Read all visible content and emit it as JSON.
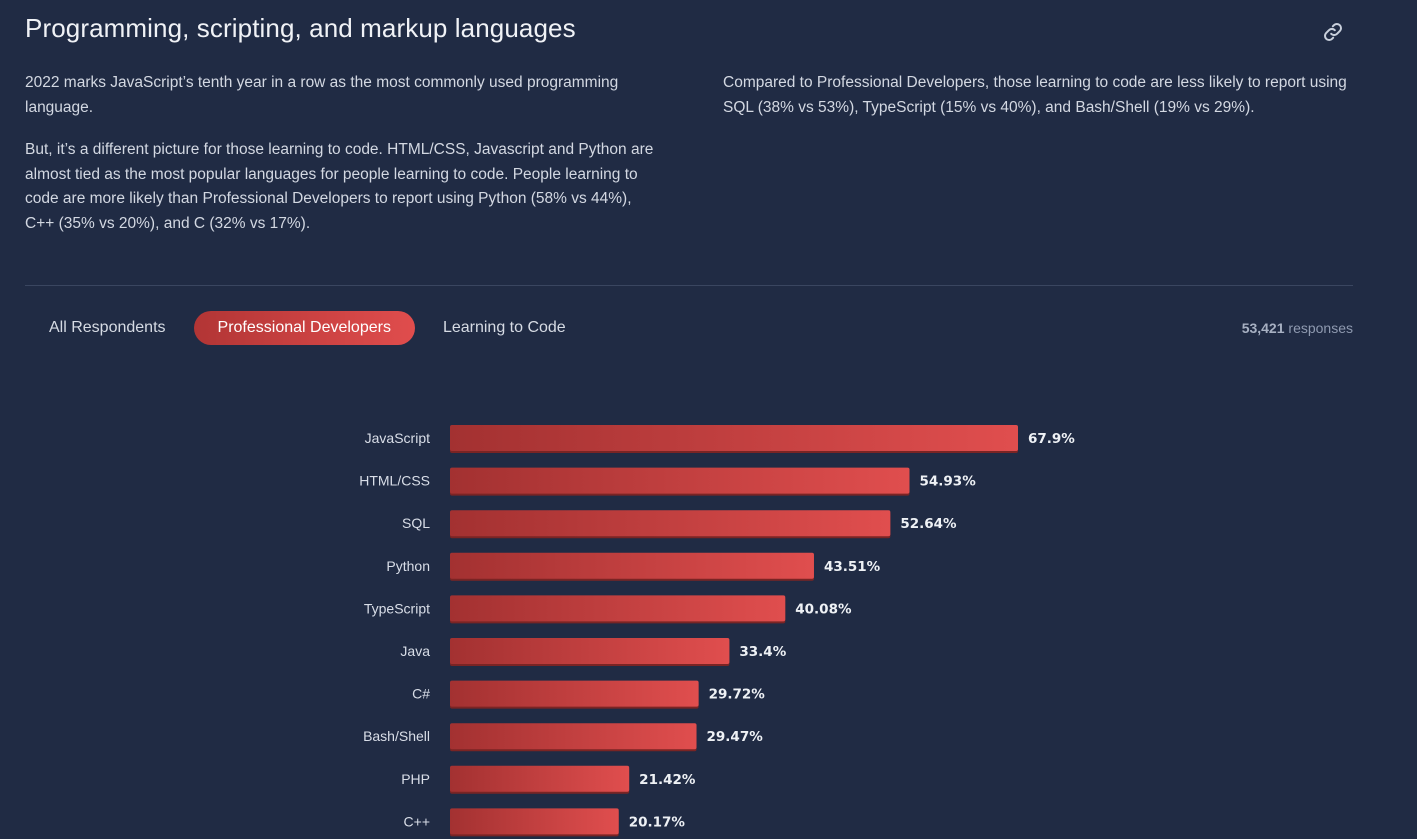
{
  "section": {
    "title": "Programming, scripting, and markup languages",
    "link_icon": "link-icon"
  },
  "intro": {
    "left_p1": "2022 marks JavaScript’s tenth year in a row as the most commonly used programming language.",
    "left_p2": "But, it’s a different picture for those learning to code. HTML/CSS, Javascript and Python are almost tied as the most popular languages for people learning to code. People learning to code are more likely than Professional Developers to report using Python (58% vs 44%), C++ (35% vs 20%), and C (32% vs 17%).",
    "right_p1": "Compared to Professional Developers, those learning to code are less likely to report using SQL (38% vs 53%), TypeScript (15% vs 40%), and Bash/Shell (19% vs 29%)."
  },
  "tabs": [
    {
      "label": "All Respondents",
      "active": false
    },
    {
      "label": "Professional Developers",
      "active": true
    },
    {
      "label": "Learning to Code",
      "active": false
    }
  ],
  "responses": {
    "count": "53,421",
    "label": "responses"
  },
  "colors": {
    "background": "#202b44",
    "bar_start": "#a33131",
    "bar_end": "#e04e4e",
    "active_tab": "#d84646"
  },
  "chart_data": {
    "type": "bar",
    "orientation": "horizontal",
    "categories": [
      "JavaScript",
      "HTML/CSS",
      "SQL",
      "Python",
      "TypeScript",
      "Java",
      "C#",
      "Bash/Shell",
      "PHP",
      "C++"
    ],
    "values": [
      67.9,
      54.93,
      52.64,
      43.51,
      40.08,
      33.4,
      29.72,
      29.47,
      21.42,
      20.17
    ],
    "value_labels": [
      "67.9%",
      "54.93%",
      "52.64%",
      "43.51%",
      "40.08%",
      "33.4%",
      "29.72%",
      "29.47%",
      "21.42%",
      "20.17%"
    ],
    "unit": "%",
    "grid": false
  }
}
